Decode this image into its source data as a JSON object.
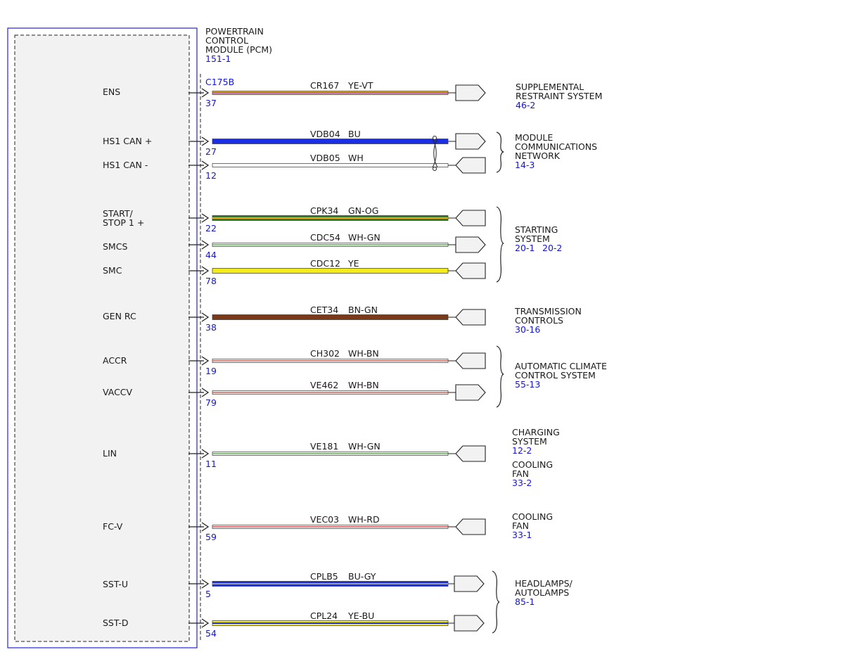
{
  "module": {
    "name_lines": [
      "POWERTRAIN",
      "CONTROL",
      "MODULE (PCM)"
    ],
    "ref": "151-1",
    "connector": "C175B"
  },
  "circuits": [
    {
      "signal": [
        "ENS"
      ],
      "pin": "37",
      "circuit": "CR167",
      "color_code": "YE-VT",
      "wire_colors": [
        "#e8b830",
        "#e8b830"
      ],
      "stripe": "#8a2be2",
      "arrow": "out"
    },
    {
      "signal": [
        "HS1 CAN +"
      ],
      "pin": "27",
      "circuit": "VDB04",
      "color_code": "BU",
      "wire_colors": [
        "#1a2ee8",
        "#1a2ee8"
      ],
      "stripe": "#1a2ee8",
      "arrow": "out"
    },
    {
      "signal": [
        "HS1 CAN -"
      ],
      "pin": "12",
      "circuit": "VDB05",
      "color_code": "WH",
      "wire_colors": [
        "#ffffff",
        "#ffffff"
      ],
      "stripe": "#ffffff",
      "arrow": "in"
    },
    {
      "signal": [
        "START/",
        "STOP 1 +"
      ],
      "pin": "22",
      "circuit": "CPK34",
      "color_code": "GN-OG",
      "wire_colors": [
        "#2e7d1a",
        "#2e7d1a"
      ],
      "stripe": "#f5a623",
      "arrow": "in"
    },
    {
      "signal": [
        "SMCS"
      ],
      "pin": "44",
      "circuit": "CDC54",
      "color_code": "WH-GN",
      "wire_colors": [
        "#ffffff",
        "#ffffff"
      ],
      "stripe": "#3a9a2a",
      "arrow": "out"
    },
    {
      "signal": [
        "SMC"
      ],
      "pin": "78",
      "circuit": "CDC12",
      "color_code": "YE",
      "wire_colors": [
        "#f4ec1a",
        "#f4ec1a"
      ],
      "stripe": "#f4ec1a",
      "arrow": "in"
    },
    {
      "signal": [
        "GEN RC"
      ],
      "pin": "38",
      "circuit": "CET34",
      "color_code": "BN-GN",
      "wire_colors": [
        "#7a3a1a",
        "#7a3a1a"
      ],
      "stripe": "#7a3a1a",
      "arrow": "in"
    },
    {
      "signal": [
        "ACCR"
      ],
      "pin": "19",
      "circuit": "CH302",
      "color_code": "WH-BN",
      "wire_colors": [
        "#ffffff",
        "#ffffff"
      ],
      "stripe": "#c0392b",
      "arrow": "in"
    },
    {
      "signal": [
        "VACCV"
      ],
      "pin": "79",
      "circuit": "VE462",
      "color_code": "WH-BN",
      "wire_colors": [
        "#ffffff",
        "#ffffff"
      ],
      "stripe": "#c0392b",
      "arrow": "out"
    },
    {
      "signal": [
        "LIN"
      ],
      "pin": "11",
      "circuit": "VE181",
      "color_code": "WH-GN",
      "wire_colors": [
        "#ffffff",
        "#ffffff"
      ],
      "stripe": "#3a9a2a",
      "arrow": "in"
    },
    {
      "signal": [
        "FC-V"
      ],
      "pin": "59",
      "circuit": "VEC03",
      "color_code": "WH-RD",
      "wire_colors": [
        "#ffffff",
        "#ffffff"
      ],
      "stripe": "#d42020",
      "arrow": "in"
    },
    {
      "signal": [
        "SST-U"
      ],
      "pin": "5",
      "circuit": "CPLB5",
      "color_code": "BU-GY",
      "wire_colors": [
        "#1a2ee8",
        "#1a2ee8"
      ],
      "stripe": "#9aa0b0",
      "arrow": "out"
    },
    {
      "signal": [
        "SST-D"
      ],
      "pin": "54",
      "circuit": "CPL24",
      "color_code": "YE-BU",
      "wire_colors": [
        "#f4ec1a",
        "#f4ec1a"
      ],
      "stripe": "#1a2ee8",
      "arrow": "out"
    }
  ],
  "destinations": [
    {
      "lines": [
        "SUPPLEMENTAL",
        "RESTRAINT SYSTEM"
      ],
      "refs": [
        "46-2"
      ]
    },
    {
      "lines": [
        "MODULE",
        "COMMUNICATIONS",
        "NETWORK"
      ],
      "refs": [
        "14-3"
      ]
    },
    {
      "lines": [
        "STARTING",
        "SYSTEM"
      ],
      "refs": [
        "20-1",
        "20-2"
      ]
    },
    {
      "lines": [
        "TRANSMISSION",
        "CONTROLS"
      ],
      "refs": [
        "30-16"
      ]
    },
    {
      "lines": [
        "AUTOMATIC CLIMATE",
        "CONTROL SYSTEM"
      ],
      "refs": [
        "55-13"
      ]
    },
    {
      "lines": [
        "CHARGING",
        "SYSTEM"
      ],
      "refs": [
        "12-2"
      ]
    },
    {
      "lines": [
        "COOLING",
        "FAN"
      ],
      "refs": [
        "33-2"
      ]
    },
    {
      "lines": [
        "COOLING",
        "FAN"
      ],
      "refs": [
        "33-1"
      ]
    },
    {
      "lines": [
        "HEADLAMPS/",
        "AUTOLAMPS"
      ],
      "refs": [
        "85-1"
      ]
    }
  ]
}
